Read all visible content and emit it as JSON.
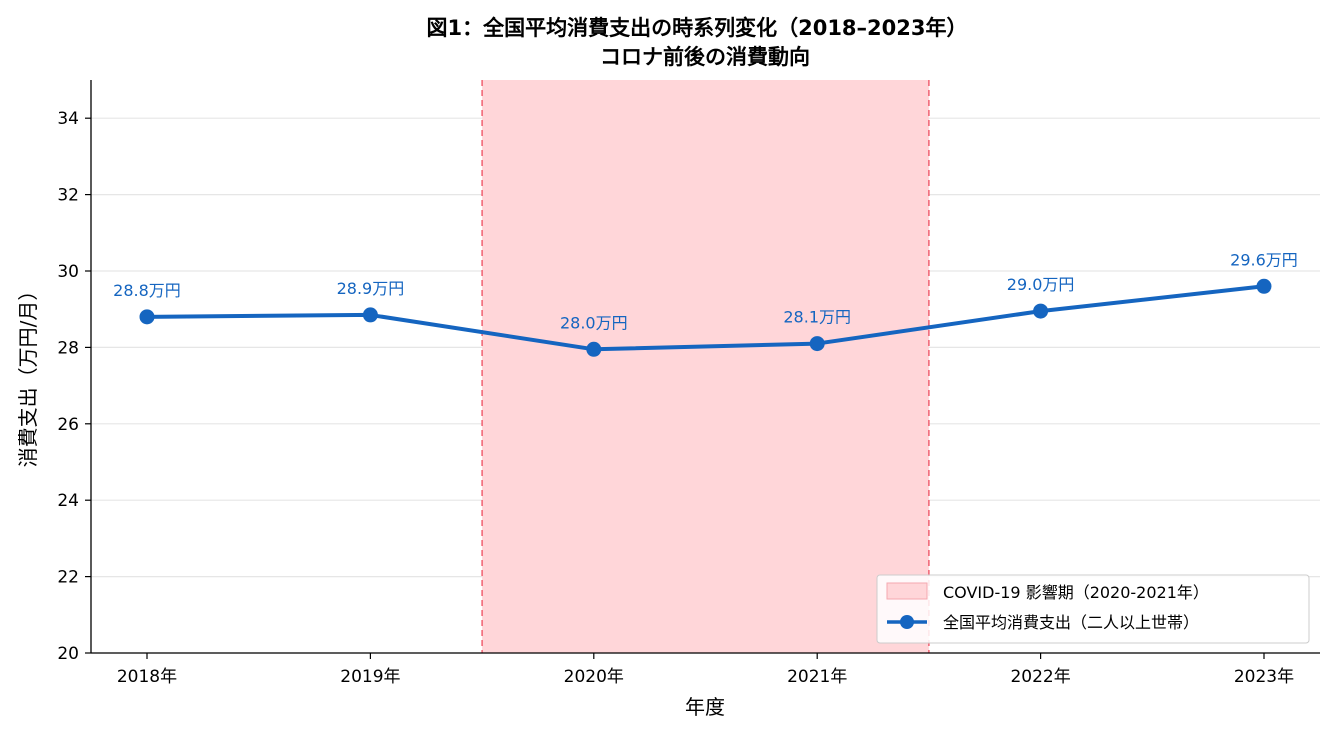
{
  "chart_data": {
    "type": "line",
    "title_line1": "図1：全国平均消費支出の時系列変化（2018–2023年）",
    "title_line2": "コロナ前後の消費動向",
    "xlabel": "年度",
    "ylabel": "消費支出（万円/月）",
    "categories": [
      "2018年",
      "2019年",
      "2020年",
      "2021年",
      "2022年",
      "2023年"
    ],
    "ylim": [
      20,
      35
    ],
    "yticks": [
      "20",
      "22",
      "24",
      "26",
      "28",
      "30",
      "32",
      "34"
    ],
    "ytick_values": [
      20,
      22,
      24,
      26,
      28,
      30,
      32,
      34
    ],
    "grid": "horizontal",
    "series": [
      {
        "name": "全国平均消費支出（二人以上世帯）",
        "values": [
          28.8,
          28.85,
          27.95,
          28.1,
          28.95,
          29.6
        ],
        "labels": [
          "28.8万円",
          "28.9万円",
          "28.0万円",
          "28.1万円",
          "29.0万円",
          "29.6万円"
        ],
        "color": "#1565c0"
      }
    ],
    "shaded_region": {
      "label": "COVID-19 影響期（2020-2021年）",
      "x_start": 1.5,
      "x_end": 3.5,
      "fill_color": "#ffd6d9",
      "edge_color": "#f06070"
    },
    "legend_position": "lower right"
  }
}
